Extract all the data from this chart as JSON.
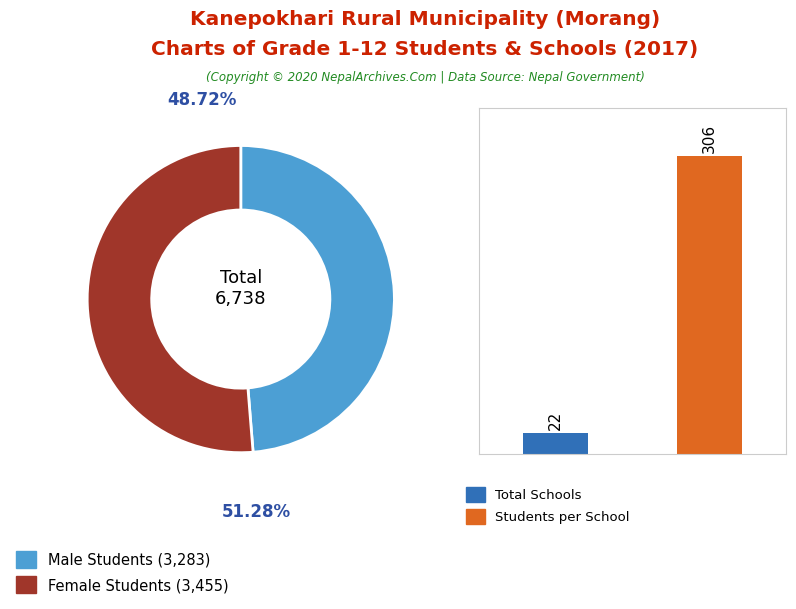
{
  "title_line1": "Kanepokhari Rural Municipality (Morang)",
  "title_line2": "Charts of Grade 1-12 Students & Schools (2017)",
  "copyright": "(Copyright © 2020 NepalArchives.Com | Data Source: Nepal Government)",
  "title_color": "#cc2200",
  "copyright_color": "#228B22",
  "male_students": 3283,
  "female_students": 3455,
  "total_students": 6738,
  "male_pct": 48.72,
  "female_pct": 51.28,
  "male_color": "#4C9FD4",
  "female_color": "#A0362A",
  "total_schools": 22,
  "students_per_school": 306,
  "bar_school_color": "#3070B8",
  "bar_student_color": "#E06820",
  "donut_center_label": "Total\n6,738",
  "pct_label_color": "#2E4FA3",
  "bar_label_color": "black",
  "background_color": "#ffffff"
}
